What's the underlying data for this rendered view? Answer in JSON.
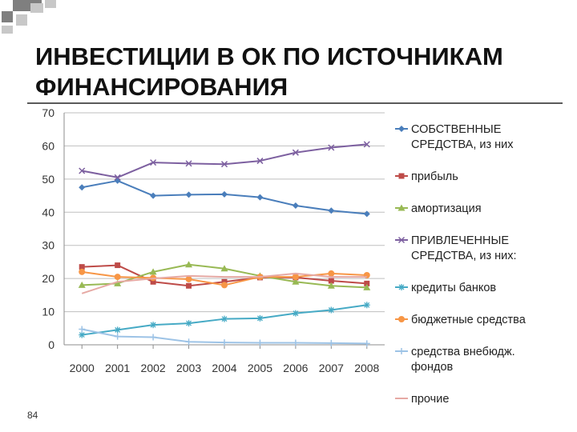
{
  "slide": {
    "title_line1": "ИНВЕСТИЦИИ В ОК ПО ИСТОЧНИКАМ",
    "title_line2": "ФИНАНСИРОВАНИЯ",
    "page_number": "84",
    "accent_colors": [
      "#7f7f7f",
      "#c8c8c8"
    ]
  },
  "chart_data": {
    "type": "line",
    "title": "",
    "xlabel": "",
    "ylabel": "",
    "x": [
      "2000",
      "2001",
      "2002",
      "2003",
      "2004",
      "2005",
      "2006",
      "2007",
      "2008"
    ],
    "ylim": [
      0,
      70
    ],
    "yticks": [
      "0",
      "10",
      "20",
      "30",
      "40",
      "50",
      "60",
      "70"
    ],
    "grid": "horizontal",
    "legend_position": "right",
    "series": [
      {
        "name": "СОБСТВЕННЫЕ СРЕДСТВА, из них",
        "legend_lines": [
          "СОБСТВЕННЫЕ",
          "СРЕДСТВА, из них"
        ],
        "color": "#4a7ebb",
        "marker": "diamond",
        "values": [
          47.5,
          49.5,
          45,
          45.3,
          45.4,
          44.5,
          42,
          40.5,
          39.5
        ]
      },
      {
        "name": "прибыль",
        "legend_lines": [
          "прибыль"
        ],
        "color": "#be4b48",
        "marker": "square",
        "values": [
          23.5,
          24,
          19,
          17.8,
          19,
          20.3,
          20.3,
          19.3,
          18.5
        ]
      },
      {
        "name": "амортизация",
        "legend_lines": [
          "амортизация"
        ],
        "color": "#98b954",
        "marker": "triangle",
        "values": [
          18,
          18.5,
          22,
          24.2,
          23,
          20.8,
          19,
          17.8,
          17.3
        ]
      },
      {
        "name": "ПРИВЛЕЧЕННЫЕ СРЕДСТВА, из них:",
        "legend_lines": [
          "ПРИВЛЕЧЕННЫЕ",
          "СРЕДСТВА, из них:"
        ],
        "color": "#7d60a0",
        "marker": "x",
        "values": [
          52.5,
          50.5,
          55,
          54.7,
          54.5,
          55.5,
          58,
          59.5,
          60.5
        ]
      },
      {
        "name": "кредиты банков",
        "legend_lines": [
          "кредиты банков"
        ],
        "color": "#46aac5",
        "marker": "star",
        "values": [
          3,
          4.5,
          6,
          6.5,
          7.8,
          8,
          9.5,
          10.5,
          12
        ]
      },
      {
        "name": "бюджетные средства",
        "legend_lines": [
          "бюджетные средства"
        ],
        "color": "#f79646",
        "marker": "circle",
        "values": [
          22,
          20.5,
          20.2,
          19.8,
          18,
          20.5,
          20.5,
          21.5,
          21
        ]
      },
      {
        "name": "средства внебюдж. фондов",
        "legend_lines": [
          "средства внебюдж.",
          "фондов"
        ],
        "color": "#9dc3e6",
        "marker": "plus",
        "values": [
          4.7,
          2.5,
          2.3,
          0.9,
          0.7,
          0.6,
          0.6,
          0.5,
          0.4
        ]
      },
      {
        "name": "прочие",
        "legend_lines": [
          "прочие"
        ],
        "color": "#e6a9a4",
        "marker": "none",
        "values": [
          15.5,
          19,
          20,
          20.8,
          20.5,
          20.5,
          21.5,
          20.5,
          20.5
        ]
      }
    ]
  }
}
